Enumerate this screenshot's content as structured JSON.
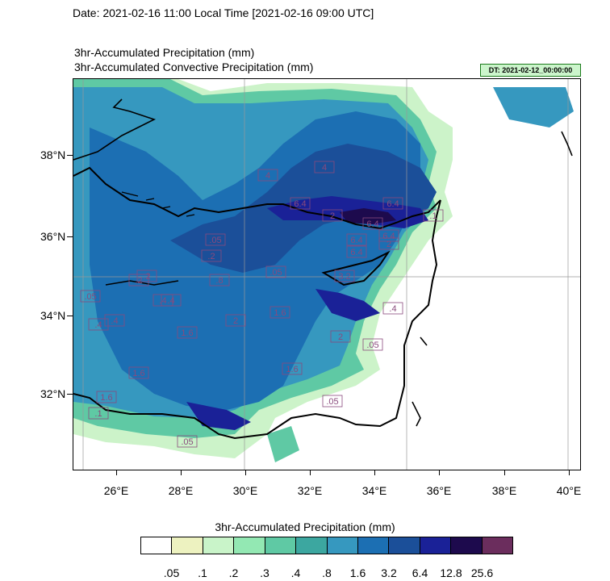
{
  "header": {
    "date_line": "Date: 2021-02-16  11:00 Local Time [2021-02-16  09:00 UTC]",
    "title_1": "3hr-Accumulated Precipitation   (mm)",
    "title_2": "3hr-Accumulated Convective Precipitation   (mm)",
    "dt_badge": "DT: 2021-02-12_00:00:00"
  },
  "map": {
    "lat_labels": [
      "38°N",
      "36°N",
      "34°N",
      "32°N"
    ],
    "lon_labels": [
      "26°E",
      "28°E",
      "30°E",
      "32°E",
      "34°E",
      "36°E",
      "38°E",
      "40°E"
    ],
    "contour_labels": [
      ".05",
      ".05",
      ".05",
      ".05",
      ".2",
      ".2",
      ".4",
      ".4",
      ".8",
      "1.6",
      "1.6",
      "1.6",
      "1.6",
      "1.6",
      ".1",
      "3.2",
      "6.4",
      "6.4",
      "6.4",
      "6.4",
      "6.4",
      "2",
      "2",
      ".05",
      ".05",
      ".4",
      ".4",
      ".2",
      "2",
      ".1",
      "2",
      ".4",
      "4",
      "6.4",
      "4"
    ]
  },
  "colorbar": {
    "title": "3hr-Accumulated Precipitation  (mm)",
    "labels": [
      ".05",
      ".1",
      ".2",
      ".3",
      ".4",
      ".8",
      "1.6",
      "3.2",
      "6.4",
      "12.8",
      "25.6"
    ],
    "colors": [
      "#ffffff",
      "#edf2c0",
      "#c9f4c9",
      "#93e8b3",
      "#5fc9a4",
      "#3ca7a0",
      "#3698bf",
      "#1c6fb3",
      "#1b4f99",
      "#1a2197",
      "#1d0a4d",
      "#6b2d5d"
    ]
  }
}
